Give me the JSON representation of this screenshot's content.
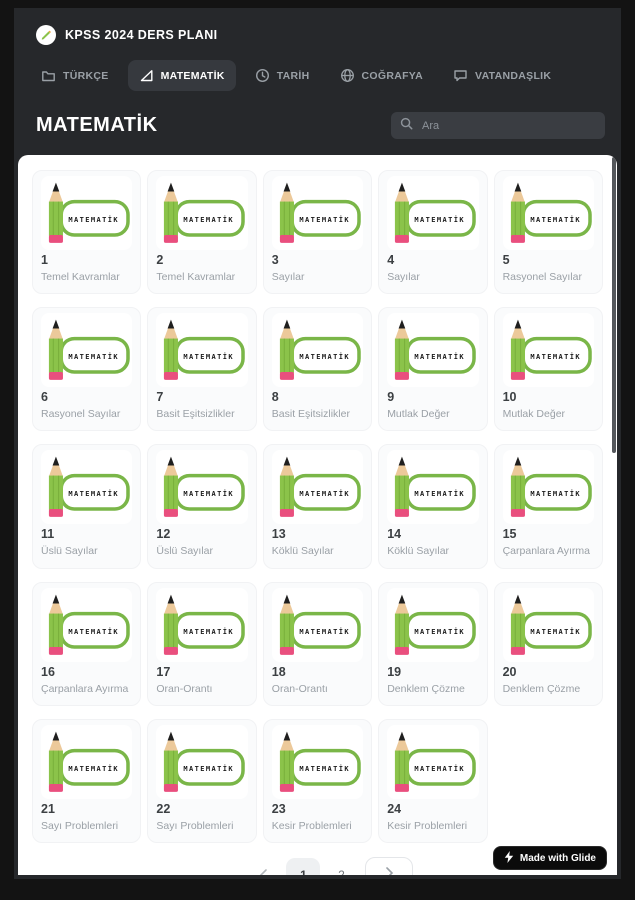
{
  "app": {
    "title": "KPSS 2024 DERS PLANI",
    "logo_icon": "pencil-logo-icon"
  },
  "tabs": [
    {
      "label": "TÜRKÇE",
      "icon": "folder-icon",
      "active": false
    },
    {
      "label": "MATEMATİK",
      "icon": "triangle-ruler-icon",
      "active": true
    },
    {
      "label": "TARİH",
      "icon": "clock-icon",
      "active": false
    },
    {
      "label": "COĞRAFYA",
      "icon": "globe-icon",
      "active": false
    },
    {
      "label": "VATANDAŞLIK",
      "icon": "chat-bubble-icon",
      "active": false
    }
  ],
  "page": {
    "title": "MATEMATİK",
    "search_placeholder": "Ara",
    "search_icon": "search-icon"
  },
  "cards_banner_label": "MATEMATİK",
  "cards": [
    {
      "number": "1",
      "subtitle": "Temel Kavramlar"
    },
    {
      "number": "2",
      "subtitle": "Temel Kavramlar"
    },
    {
      "number": "3",
      "subtitle": "Sayılar"
    },
    {
      "number": "4",
      "subtitle": "Sayılar"
    },
    {
      "number": "5",
      "subtitle": "Rasyonel Sayılar"
    },
    {
      "number": "6",
      "subtitle": "Rasyonel Sayılar"
    },
    {
      "number": "7",
      "subtitle": "Basit Eşitsizlikler"
    },
    {
      "number": "8",
      "subtitle": "Basit Eşitsizlikler"
    },
    {
      "number": "9",
      "subtitle": "Mutlak Değer"
    },
    {
      "number": "10",
      "subtitle": "Mutlak Değer"
    },
    {
      "number": "11",
      "subtitle": "Üslü Sayılar"
    },
    {
      "number": "12",
      "subtitle": "Üslü Sayılar"
    },
    {
      "number": "13",
      "subtitle": "Köklü Sayılar"
    },
    {
      "number": "14",
      "subtitle": "Köklü Sayılar"
    },
    {
      "number": "15",
      "subtitle": "Çarpanlara Ayırma"
    },
    {
      "number": "16",
      "subtitle": "Çarpanlara Ayırma"
    },
    {
      "number": "17",
      "subtitle": "Oran-Orantı"
    },
    {
      "number": "18",
      "subtitle": "Oran-Orantı"
    },
    {
      "number": "19",
      "subtitle": "Denklem Çözme"
    },
    {
      "number": "20",
      "subtitle": "Denklem Çözme"
    },
    {
      "number": "21",
      "subtitle": "Sayı Problemleri"
    },
    {
      "number": "22",
      "subtitle": "Sayı Problemleri"
    },
    {
      "number": "23",
      "subtitle": "Kesir Problemleri"
    },
    {
      "number": "24",
      "subtitle": "Kesir Problemleri"
    }
  ],
  "pagination": {
    "prev_icon": "chevron-left-icon",
    "next_icon": "chevron-right-icon",
    "pages": [
      "1",
      "2"
    ],
    "selected_page": "1"
  },
  "badge": {
    "icon": "bolt-icon",
    "label": "Made with Glide"
  },
  "colors": {
    "frame": "#131313",
    "app_bg": "#26282b",
    "active_tab_bg": "#36393e",
    "accent_green": "#7ab648",
    "pencil_green": "#8bc34a",
    "pencil_wood": "#ecc99a",
    "eraser_pink": "#e94f7e",
    "card_bg": "#fafbfc"
  }
}
